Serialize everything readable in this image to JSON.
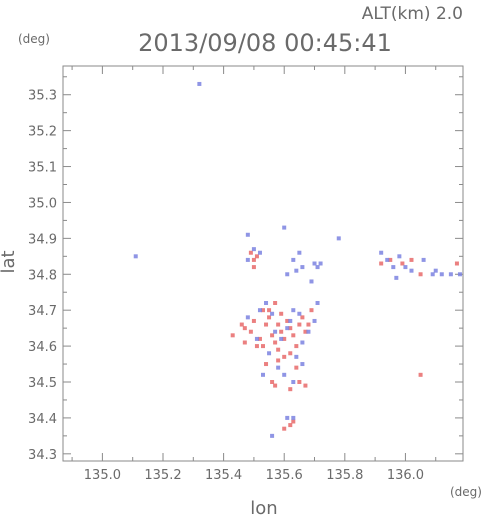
{
  "header": {
    "altitude_label": "ALT(km)  2.0",
    "timestamp": "2013/09/08 00:45:41",
    "y_unit": "(deg)",
    "x_unit": "(deg)"
  },
  "chart_data": {
    "type": "scatter",
    "xlabel": "lon",
    "ylabel": "lat",
    "xlim": [
      134.87,
      136.19
    ],
    "ylim": [
      34.28,
      35.38
    ],
    "x_ticks": [
      {
        "value": 135.0,
        "label": "135.0"
      },
      {
        "value": 135.2,
        "label": "135.2"
      },
      {
        "value": 135.4,
        "label": "135.4"
      },
      {
        "value": 135.6,
        "label": "135.6"
      },
      {
        "value": 135.8,
        "label": "135.8"
      },
      {
        "value": 136.0,
        "label": "136.0"
      }
    ],
    "y_ticks": [
      {
        "value": 34.3,
        "label": "34.3"
      },
      {
        "value": 34.4,
        "label": "34.4"
      },
      {
        "value": 34.5,
        "label": "34.5"
      },
      {
        "value": 34.6,
        "label": "34.6"
      },
      {
        "value": 34.7,
        "label": "34.7"
      },
      {
        "value": 34.8,
        "label": "34.8"
      },
      {
        "value": 34.9,
        "label": "34.9"
      },
      {
        "value": 35.0,
        "label": "35.0"
      },
      {
        "value": 35.1,
        "label": "35.1"
      },
      {
        "value": 35.2,
        "label": "35.2"
      },
      {
        "value": 35.3,
        "label": "35.3"
      }
    ],
    "grid": false,
    "series": [
      {
        "color": "#e86a6a",
        "points": [
          [
            135.49,
            34.86
          ],
          [
            135.5,
            34.84
          ],
          [
            135.51,
            34.85
          ],
          [
            135.5,
            34.82
          ],
          [
            135.43,
            34.63
          ],
          [
            135.46,
            34.66
          ],
          [
            135.47,
            34.65
          ],
          [
            135.49,
            34.64
          ],
          [
            135.5,
            34.67
          ],
          [
            135.52,
            34.62
          ],
          [
            135.53,
            34.6
          ],
          [
            135.54,
            34.66
          ],
          [
            135.55,
            34.68
          ],
          [
            135.56,
            34.63
          ],
          [
            135.57,
            34.61
          ],
          [
            135.58,
            34.66
          ],
          [
            135.59,
            34.64
          ],
          [
            135.6,
            34.62
          ],
          [
            135.61,
            34.67
          ],
          [
            135.62,
            34.65
          ],
          [
            135.63,
            34.63
          ],
          [
            135.64,
            34.6
          ],
          [
            135.65,
            34.66
          ],
          [
            135.66,
            34.68
          ],
          [
            135.67,
            34.64
          ],
          [
            135.55,
            34.7
          ],
          [
            135.57,
            34.72
          ],
          [
            135.58,
            34.56
          ],
          [
            135.6,
            34.57
          ],
          [
            135.54,
            34.55
          ],
          [
            135.56,
            34.5
          ],
          [
            135.57,
            34.49
          ],
          [
            135.62,
            34.48
          ],
          [
            135.65,
            34.5
          ],
          [
            135.67,
            34.49
          ],
          [
            135.62,
            34.58
          ],
          [
            135.64,
            34.54
          ],
          [
            135.51,
            34.6
          ],
          [
            135.59,
            34.69
          ],
          [
            135.53,
            34.7
          ],
          [
            135.68,
            34.66
          ],
          [
            135.69,
            34.7
          ],
          [
            135.62,
            34.38
          ],
          [
            135.63,
            34.39
          ],
          [
            135.6,
            34.37
          ],
          [
            135.92,
            34.83
          ],
          [
            135.95,
            34.84
          ],
          [
            135.99,
            34.83
          ],
          [
            136.02,
            34.84
          ],
          [
            136.05,
            34.8
          ],
          [
            136.05,
            34.52
          ],
          [
            136.17,
            34.83
          ],
          [
            135.47,
            34.61
          ],
          [
            135.58,
            34.59
          ]
        ]
      },
      {
        "color": "#7b82e0",
        "points": [
          [
            135.11,
            34.85
          ],
          [
            135.32,
            35.33
          ],
          [
            135.48,
            34.91
          ],
          [
            135.5,
            34.87
          ],
          [
            135.52,
            34.86
          ],
          [
            135.48,
            34.84
          ],
          [
            135.6,
            34.93
          ],
          [
            135.63,
            34.84
          ],
          [
            135.65,
            34.86
          ],
          [
            135.61,
            34.8
          ],
          [
            135.64,
            34.81
          ],
          [
            135.66,
            34.82
          ],
          [
            135.7,
            34.83
          ],
          [
            135.69,
            34.78
          ],
          [
            135.71,
            34.82
          ],
          [
            135.78,
            34.9
          ],
          [
            135.72,
            34.83
          ],
          [
            135.48,
            34.68
          ],
          [
            135.52,
            34.7
          ],
          [
            135.54,
            34.72
          ],
          [
            135.56,
            34.69
          ],
          [
            135.57,
            34.64
          ],
          [
            135.59,
            34.62
          ],
          [
            135.61,
            34.65
          ],
          [
            135.63,
            34.7
          ],
          [
            135.65,
            34.69
          ],
          [
            135.66,
            34.61
          ],
          [
            135.68,
            34.64
          ],
          [
            135.7,
            34.67
          ],
          [
            135.71,
            34.72
          ],
          [
            135.55,
            34.58
          ],
          [
            135.58,
            34.54
          ],
          [
            135.6,
            34.52
          ],
          [
            135.64,
            34.57
          ],
          [
            135.66,
            34.55
          ],
          [
            135.63,
            34.5
          ],
          [
            135.53,
            34.52
          ],
          [
            135.61,
            34.4
          ],
          [
            135.63,
            34.4
          ],
          [
            135.56,
            34.35
          ],
          [
            135.92,
            34.86
          ],
          [
            135.94,
            34.84
          ],
          [
            135.96,
            34.82
          ],
          [
            135.97,
            34.79
          ],
          [
            135.98,
            34.85
          ],
          [
            136.0,
            34.82
          ],
          [
            136.02,
            34.81
          ],
          [
            136.06,
            34.84
          ],
          [
            136.09,
            34.8
          ],
          [
            136.12,
            34.8
          ],
          [
            136.15,
            34.8
          ],
          [
            136.18,
            34.8
          ],
          [
            136.1,
            34.81
          ],
          [
            135.51,
            34.62
          ],
          [
            135.62,
            34.67
          ]
        ]
      }
    ]
  }
}
